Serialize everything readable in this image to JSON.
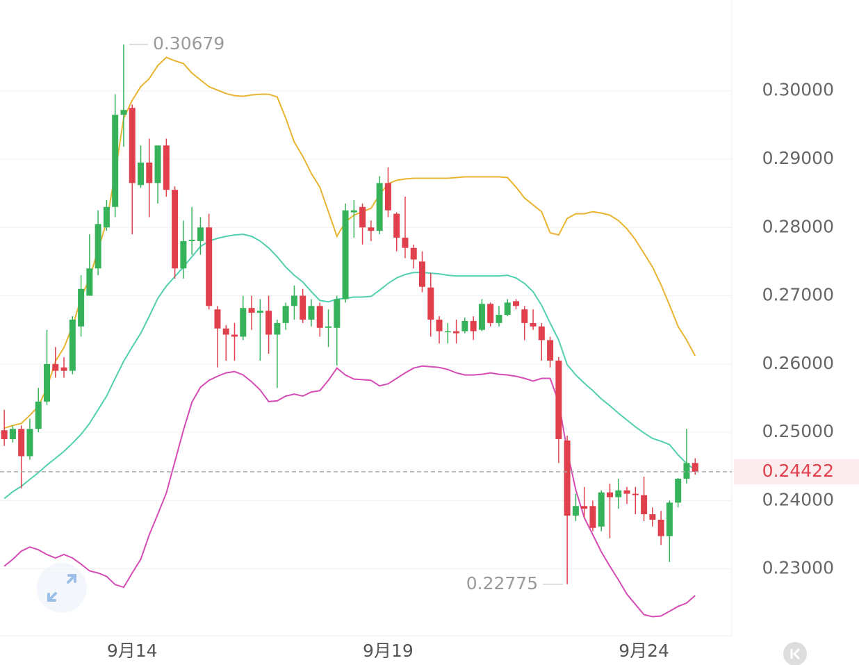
{
  "chart_data": {
    "type": "candlestick",
    "x_labels": [
      {
        "value": 15,
        "label": "9月14"
      },
      {
        "value": 45,
        "label": "9月19"
      },
      {
        "value": 75,
        "label": "9月24"
      }
    ],
    "xlim": [
      -0.5,
      85.3
    ],
    "ylim": [
      0.2202,
      0.3133
    ],
    "yticks": [
      {
        "value": 0.23,
        "label": "0.23000"
      },
      {
        "value": 0.24,
        "label": "0.24000"
      },
      {
        "value": 0.25,
        "label": "0.25000"
      },
      {
        "value": 0.26,
        "label": "0.26000"
      },
      {
        "value": 0.27,
        "label": "0.27000"
      },
      {
        "value": 0.28,
        "label": "0.28000"
      },
      {
        "value": 0.29,
        "label": "0.29000"
      },
      {
        "value": 0.3,
        "label": "0.30000"
      }
    ],
    "grid": true,
    "up_color": "#36b35a",
    "down_color": "#e0404c",
    "open": [
      0.2503,
      0.249,
      0.2505,
      0.2465,
      0.2505,
      0.2545,
      0.26,
      0.2595,
      0.259,
      0.2655,
      0.27,
      0.274,
      0.28,
      0.283,
      0.2965,
      0.2975,
      0.2862,
      0.2895,
      0.2865,
      0.292,
      0.2855,
      0.274,
      0.278,
      0.278,
      0.28,
      0.268,
      0.2652,
      0.2643,
      0.264,
      0.2682,
      0.2675,
      0.2678,
      0.2643,
      0.266,
      0.2685,
      0.27,
      0.2665,
      0.2685,
      0.2653,
      0.2653,
      0.2695,
      0.2822,
      0.283,
      0.28,
      0.2795,
      0.2865,
      0.282,
      0.2785,
      0.277,
      0.275,
      0.2712,
      0.2665,
      0.2648,
      0.2648,
      0.2648,
      0.2663,
      0.265,
      0.2688,
      0.266,
      0.2672,
      0.2692,
      0.268,
      0.266,
      0.2655,
      0.2635,
      0.2605,
      0.2488,
      0.2378,
      0.2392,
      0.2392,
      0.2362,
      0.2412,
      0.2405,
      0.2415,
      0.241,
      0.2408,
      0.238,
      0.2372,
      0.2348,
      0.2397,
      0.2432,
      0.2455
    ],
    "high": [
      0.2533,
      0.251,
      0.251,
      0.252,
      0.2565,
      0.265,
      0.2625,
      0.261,
      0.267,
      0.273,
      0.279,
      0.2825,
      0.284,
      0.2995,
      0.30679,
      0.298,
      0.292,
      0.293,
      0.292,
      0.293,
      0.286,
      0.281,
      0.283,
      0.2815,
      0.282,
      0.2685,
      0.2657,
      0.266,
      0.27,
      0.27,
      0.2695,
      0.27,
      0.2665,
      0.269,
      0.2715,
      0.271,
      0.2695,
      0.269,
      0.268,
      0.27,
      0.2835,
      0.284,
      0.2835,
      0.281,
      0.2875,
      0.2888,
      0.2822,
      0.2845,
      0.2775,
      0.2765,
      0.2733,
      0.267,
      0.266,
      0.2665,
      0.2668,
      0.267,
      0.2695,
      0.269,
      0.2685,
      0.2695,
      0.2695,
      0.2685,
      0.268,
      0.266,
      0.264,
      0.261,
      0.2495,
      0.241,
      0.242,
      0.24,
      0.2415,
      0.2425,
      0.2432,
      0.242,
      0.242,
      0.2435,
      0.239,
      0.2385,
      0.24,
      0.2433,
      0.2505,
      0.2462
    ],
    "low": [
      0.248,
      0.2485,
      0.2418,
      0.246,
      0.25,
      0.254,
      0.258,
      0.258,
      0.2585,
      0.264,
      0.27,
      0.273,
      0.2795,
      0.2815,
      0.2918,
      0.279,
      0.2858,
      0.2815,
      0.2835,
      0.2845,
      0.2725,
      0.2725,
      0.276,
      0.276,
      0.268,
      0.2595,
      0.2605,
      0.2605,
      0.2635,
      0.265,
      0.2605,
      0.2615,
      0.2565,
      0.265,
      0.2665,
      0.266,
      0.2655,
      0.264,
      0.2625,
      0.2598,
      0.269,
      0.2785,
      0.2775,
      0.278,
      0.279,
      0.2815,
      0.2765,
      0.2755,
      0.274,
      0.2705,
      0.264,
      0.263,
      0.263,
      0.263,
      0.2645,
      0.2635,
      0.2648,
      0.2655,
      0.2655,
      0.267,
      0.268,
      0.2635,
      0.265,
      0.2605,
      0.2595,
      0.2455,
      0.22775,
      0.237,
      0.2375,
      0.2355,
      0.2355,
      0.2345,
      0.2388,
      0.2395,
      0.238,
      0.237,
      0.2362,
      0.2335,
      0.231,
      0.239,
      0.2425,
      0.2438
    ],
    "close": [
      0.249,
      0.2505,
      0.2465,
      0.2505,
      0.2545,
      0.26,
      0.259,
      0.259,
      0.2665,
      0.271,
      0.274,
      0.2805,
      0.283,
      0.2965,
      0.2972,
      0.2865,
      0.2895,
      0.2865,
      0.292,
      0.2855,
      0.274,
      0.278,
      0.2782,
      0.28,
      0.2685,
      0.2652,
      0.2643,
      0.264,
      0.2682,
      0.2675,
      0.2678,
      0.2643,
      0.266,
      0.2685,
      0.27,
      0.2665,
      0.2685,
      0.2653,
      0.2655,
      0.2695,
      0.2825,
      0.2825,
      0.28,
      0.2795,
      0.2865,
      0.2825,
      0.2785,
      0.277,
      0.2753,
      0.2713,
      0.2665,
      0.2648,
      0.2648,
      0.2645,
      0.2663,
      0.2648,
      0.2688,
      0.266,
      0.2672,
      0.269,
      0.2685,
      0.266,
      0.2655,
      0.2635,
      0.2605,
      0.249,
      0.2378,
      0.2392,
      0.2388,
      0.236,
      0.2412,
      0.2405,
      0.2415,
      0.241,
      0.2408,
      0.238,
      0.2372,
      0.2348,
      0.2397,
      0.2432,
      0.2455,
      0.24422
    ],
    "bands": [
      {
        "color": "#e8b431",
        "values": [
          0.2506,
          0.251,
          0.2513,
          0.2525,
          0.2538,
          0.2565,
          0.2604,
          0.2624,
          0.2655,
          0.2696,
          0.2726,
          0.2767,
          0.2808,
          0.2879,
          0.296,
          0.2986,
          0.3006,
          0.3018,
          0.3037,
          0.3049,
          0.3044,
          0.304,
          0.3026,
          0.3016,
          0.3006,
          0.3001,
          0.2996,
          0.2993,
          0.2992,
          0.2994,
          0.2995,
          0.2995,
          0.2991,
          0.296,
          0.2925,
          0.2904,
          0.2879,
          0.2859,
          0.2823,
          0.2787,
          0.2808,
          0.2818,
          0.2823,
          0.2828,
          0.2848,
          0.2864,
          0.2869,
          0.2871,
          0.2872,
          0.2872,
          0.2872,
          0.2872,
          0.2872,
          0.2873,
          0.2874,
          0.2874,
          0.2874,
          0.2874,
          0.2874,
          0.2873,
          0.2859,
          0.2843,
          0.2833,
          0.2823,
          0.2792,
          0.2789,
          0.2813,
          0.282,
          0.282,
          0.2823,
          0.2821,
          0.2818,
          0.281,
          0.2798,
          0.2782,
          0.2762,
          0.2742,
          0.2716,
          0.2686,
          0.2655,
          0.2635,
          0.2612
        ]
      },
      {
        "color": "#52cfae",
        "values": [
          0.2403,
          0.2413,
          0.2421,
          0.2431,
          0.2441,
          0.2452,
          0.2462,
          0.2472,
          0.2484,
          0.2497,
          0.2513,
          0.2533,
          0.2553,
          0.2579,
          0.2604,
          0.2625,
          0.2645,
          0.267,
          0.2696,
          0.2714,
          0.2728,
          0.2742,
          0.2757,
          0.2772,
          0.278,
          0.2784,
          0.2787,
          0.2789,
          0.279,
          0.2787,
          0.278,
          0.277,
          0.2757,
          0.2742,
          0.273,
          0.272,
          0.2706,
          0.2693,
          0.2691,
          0.2695,
          0.2696,
          0.2698,
          0.2698,
          0.2699,
          0.2708,
          0.2718,
          0.2726,
          0.2731,
          0.2734,
          0.2734,
          0.2733,
          0.2732,
          0.273,
          0.2729,
          0.2729,
          0.2729,
          0.2729,
          0.2729,
          0.2729,
          0.273,
          0.2726,
          0.2718,
          0.2706,
          0.2686,
          0.266,
          0.2635,
          0.2599,
          0.2584,
          0.2572,
          0.2561,
          0.2549,
          0.2539,
          0.2528,
          0.2518,
          0.2508,
          0.2499,
          0.2491,
          0.2487,
          0.2482,
          0.2467,
          0.2454,
          0.2445
        ]
      },
      {
        "color": "#d44cb4",
        "values": [
          0.2304,
          0.2314,
          0.2326,
          0.2332,
          0.2328,
          0.2321,
          0.2316,
          0.2321,
          0.2316,
          0.2307,
          0.2297,
          0.2294,
          0.2289,
          0.2277,
          0.2273,
          0.2294,
          0.2314,
          0.235,
          0.238,
          0.2411,
          0.2457,
          0.2503,
          0.2544,
          0.2566,
          0.2576,
          0.2582,
          0.2587,
          0.2589,
          0.2584,
          0.2574,
          0.2562,
          0.2545,
          0.2546,
          0.2553,
          0.2556,
          0.2553,
          0.2559,
          0.2561,
          0.2576,
          0.2594,
          0.2584,
          0.2578,
          0.2577,
          0.2576,
          0.2568,
          0.2571,
          0.2579,
          0.2587,
          0.2594,
          0.2597,
          0.2596,
          0.2595,
          0.2592,
          0.2587,
          0.2584,
          0.2584,
          0.2585,
          0.2587,
          0.2585,
          0.2584,
          0.2582,
          0.2579,
          0.2575,
          0.2579,
          0.2579,
          0.2544,
          0.2473,
          0.2416,
          0.2375,
          0.235,
          0.2325,
          0.2304,
          0.2284,
          0.2263,
          0.2248,
          0.2233,
          0.223,
          0.2231,
          0.2238,
          0.2245,
          0.225,
          0.2261
        ]
      }
    ],
    "annotations": [
      {
        "value": 0.30679,
        "label": "0.30679"
      },
      {
        "value": 0.22775,
        "label": "0.22775"
      }
    ],
    "last_price": {
      "value": 0.24422,
      "label": "0.24422"
    }
  }
}
